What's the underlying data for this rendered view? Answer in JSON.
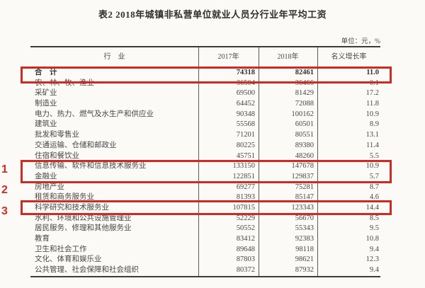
{
  "page": {
    "title": "表2 2018年城镇非私营单位就业人员分行业年平均工资",
    "unit_note": "单位：元，%"
  },
  "table": {
    "columns": [
      "行　业",
      "2017年",
      "2018年",
      "名义增长率"
    ],
    "rows": [
      {
        "industry": "合　计",
        "y2017": "74318",
        "y2018": "82461",
        "growth": "11.0",
        "bold": true,
        "highlighted": true
      },
      {
        "industry": "农、林、牧、渔业",
        "y2017": "36504",
        "y2018": "36466",
        "growth": "-0.1"
      },
      {
        "industry": "采矿业",
        "y2017": "69500",
        "y2018": "81429",
        "growth": "17.2"
      },
      {
        "industry": "制造业",
        "y2017": "64452",
        "y2018": "72088",
        "growth": "11.8"
      },
      {
        "industry": "电力、热力、燃气及水生产和供应业",
        "y2017": "90348",
        "y2018": "100162",
        "growth": "10.9"
      },
      {
        "industry": "建筑业",
        "y2017": "55568",
        "y2018": "60501",
        "growth": "8.9"
      },
      {
        "industry": "批发和零售业",
        "y2017": "71201",
        "y2018": "80551",
        "growth": "13.1"
      },
      {
        "industry": "交通运输、仓储和邮政业",
        "y2017": "80225",
        "y2018": "89380",
        "growth": "11.4"
      },
      {
        "industry": "住宿和餐饮业",
        "y2017": "45751",
        "y2018": "48260",
        "growth": "5.5"
      },
      {
        "industry": "信息传输、软件和信息技术服务业",
        "y2017": "133150",
        "y2018": "147678",
        "growth": "10.9",
        "highlighted": true
      },
      {
        "industry": "金融业",
        "y2017": "122851",
        "y2018": "129837",
        "growth": "5.7",
        "highlighted": true
      },
      {
        "industry": "房地产业",
        "y2017": "69277",
        "y2018": "75281",
        "growth": "8.7"
      },
      {
        "industry": "租赁和商务服务业",
        "y2017": "81393",
        "y2018": "85147",
        "growth": "4.6"
      },
      {
        "industry": "科学研究和技术服务业",
        "y2017": "107815",
        "y2018": "123343",
        "growth": "14.4",
        "highlighted": true
      },
      {
        "industry": "水利、环境和公共设施管理业",
        "y2017": "52229",
        "y2018": "56670",
        "growth": "8.5"
      },
      {
        "industry": "居民服务、修理和其他服务业",
        "y2017": "50552",
        "y2018": "55343",
        "growth": "9.5"
      },
      {
        "industry": "教育",
        "y2017": "83412",
        "y2018": "92383",
        "growth": "10.8"
      },
      {
        "industry": "卫生和社会工作",
        "y2017": "89648",
        "y2018": "98118",
        "growth": "9.4"
      },
      {
        "industry": "文化、体育和娱乐业",
        "y2017": "87803",
        "y2018": "98621",
        "growth": "12.3"
      },
      {
        "industry": "公共管理、社会保障和社会组织",
        "y2017": "80372",
        "y2018": "87932",
        "growth": "9.4"
      }
    ]
  },
  "annotations": {
    "highlight_color": "#d02b22",
    "markers": [
      {
        "label": "1"
      },
      {
        "label": "2"
      },
      {
        "label": "3"
      }
    ]
  }
}
